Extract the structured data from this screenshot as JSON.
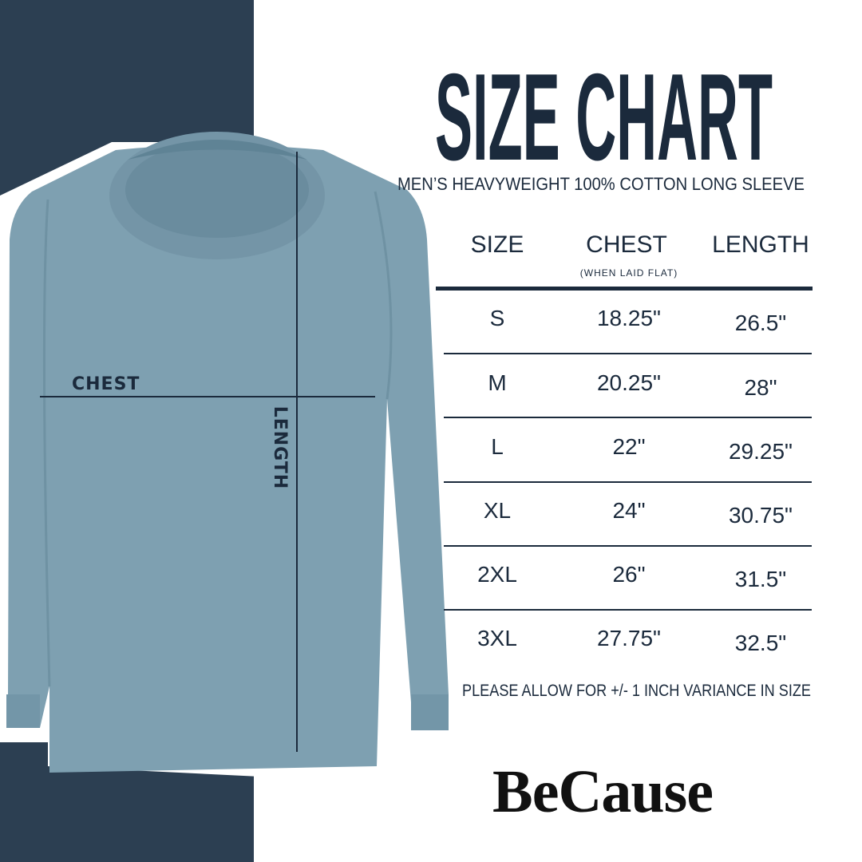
{
  "title": "SIZE CHART",
  "subtitle": "MEN’S HEAVYWEIGHT 100% COTTON LONG SLEEVE",
  "diagram": {
    "chest_label": "CHEST",
    "length_label": "LENGTH"
  },
  "table": {
    "headers": {
      "size": "SIZE",
      "chest": "CHEST",
      "chest_note": "(WHEN LAID FLAT)",
      "length": "LENGTH"
    },
    "rows": [
      {
        "size": "S",
        "chest": "18.25\"",
        "length": "26.5\""
      },
      {
        "size": "M",
        "chest": "20.25\"",
        "length": "28\""
      },
      {
        "size": "L",
        "chest": "22\"",
        "length": "29.25\""
      },
      {
        "size": "XL",
        "chest": "24\"",
        "length": "30.75\""
      },
      {
        "size": "2XL",
        "chest": "26\"",
        "length": "31.5\""
      },
      {
        "size": "3XL",
        "chest": "27.75\"",
        "length": "32.5\""
      }
    ]
  },
  "footnote": "PLEASE ALLOW FOR +/- 1 INCH VARIANCE IN SIZE",
  "brand": "BeCause",
  "colors": {
    "panel": "#2c3f52",
    "shirt": "#7ea0b1",
    "text": "#1b2a3c"
  }
}
